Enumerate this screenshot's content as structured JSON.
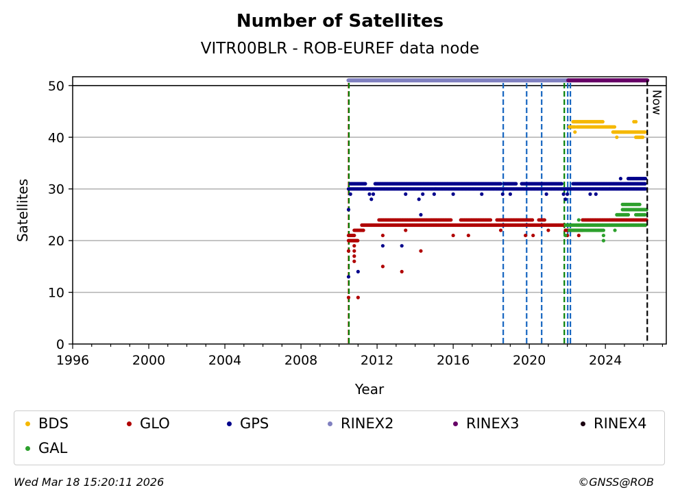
{
  "chart_data": {
    "type": "scatter",
    "title": "Number of Satellites",
    "subtitle": "VITR00BLR - ROB-EUREF data node",
    "xlabel": "Year",
    "ylabel": "Satellites",
    "xlim": [
      1996,
      2027.2
    ],
    "ylim": [
      0,
      51.7
    ],
    "xticks": [
      "1996",
      "2000",
      "2004",
      "2008",
      "2012",
      "2016",
      "2020",
      "2024"
    ],
    "yticks": [
      "0",
      "10",
      "20",
      "30",
      "40",
      "50"
    ],
    "grid": "horizontal",
    "now_label": "Now",
    "now_year": 2026.2,
    "event_lines": [
      {
        "year": 2010.5,
        "color": "#d62728"
      },
      {
        "year": 2010.52,
        "color": "#008000"
      },
      {
        "year": 2018.63,
        "color": "#1565c0"
      },
      {
        "year": 2019.86,
        "color": "#1565c0"
      },
      {
        "year": 2020.65,
        "color": "#1565c0"
      },
      {
        "year": 2021.84,
        "color": "#008000"
      },
      {
        "year": 2022.02,
        "color": "#1565c0"
      },
      {
        "year": 2022.16,
        "color": "#1565c0"
      }
    ],
    "rinex_bars": [
      {
        "name": "RINEX2",
        "from": 2010.5,
        "to": 2022.05,
        "value": 51,
        "color": "#8080c0"
      },
      {
        "name": "RINEX3",
        "from": 2022.05,
        "to": 2026.2,
        "value": 51,
        "color": "#660066"
      }
    ],
    "series": [
      {
        "name": "BDS",
        "color": "#f5b800",
        "runs": [
          [
            2022.1,
            2022.4,
            42
          ],
          [
            2022.3,
            2023.9,
            43
          ],
          [
            2022.5,
            2024.5,
            42
          ],
          [
            2024.4,
            2026.1,
            41
          ],
          [
            2025.6,
            2026.0,
            40
          ]
        ],
        "points": [
          [
            2022.4,
            41
          ],
          [
            2024.6,
            40
          ],
          [
            2025.5,
            43
          ],
          [
            2025.6,
            43
          ]
        ]
      },
      {
        "name": "GLO",
        "color": "#b00000",
        "runs": [
          [
            2012.1,
            2015.9,
            24
          ],
          [
            2016.4,
            2018.0,
            24
          ],
          [
            2018.3,
            2020.2,
            24
          ],
          [
            2020.5,
            2020.8,
            24
          ],
          [
            2022.8,
            2026.2,
            24
          ],
          [
            2011.2,
            2022.0,
            23
          ],
          [
            2022.5,
            2026.1,
            23
          ],
          [
            2010.8,
            2011.3,
            22
          ],
          [
            2021.9,
            2022.8,
            22
          ],
          [
            2010.5,
            2010.8,
            21
          ],
          [
            2010.5,
            2011.0,
            20
          ]
        ],
        "points": [
          [
            2010.5,
            18
          ],
          [
            2010.5,
            9
          ],
          [
            2010.8,
            19
          ],
          [
            2010.8,
            18
          ],
          [
            2010.8,
            17
          ],
          [
            2010.8,
            16
          ],
          [
            2011.0,
            9
          ],
          [
            2012.3,
            15
          ],
          [
            2013.3,
            14
          ],
          [
            2014.3,
            18
          ],
          [
            2012.3,
            21
          ],
          [
            2013.5,
            22
          ],
          [
            2016.0,
            21
          ],
          [
            2016.8,
            21
          ],
          [
            2018.5,
            22
          ],
          [
            2019.8,
            21
          ],
          [
            2020.2,
            21
          ],
          [
            2021.0,
            22
          ],
          [
            2022.0,
            21
          ],
          [
            2022.6,
            21
          ]
        ]
      },
      {
        "name": "GPS",
        "color": "#00008b",
        "runs": [
          [
            2010.6,
            2011.4,
            31
          ],
          [
            2011.9,
            2018.5,
            31
          ],
          [
            2018.7,
            2019.3,
            31
          ],
          [
            2019.6,
            2021.7,
            31
          ],
          [
            2022.3,
            2026.1,
            31
          ],
          [
            2010.5,
            2026.1,
            30
          ],
          [
            2025.2,
            2026.1,
            32
          ]
        ],
        "points": [
          [
            2010.5,
            26
          ],
          [
            2010.5,
            13
          ],
          [
            2011.0,
            14
          ],
          [
            2012.3,
            19
          ],
          [
            2013.3,
            19
          ],
          [
            2014.3,
            25
          ],
          [
            2010.6,
            29
          ],
          [
            2011.6,
            29
          ],
          [
            2011.8,
            29
          ],
          [
            2011.7,
            28
          ],
          [
            2013.5,
            29
          ],
          [
            2014.4,
            29
          ],
          [
            2014.2,
            28
          ],
          [
            2015.0,
            29
          ],
          [
            2016.0,
            29
          ],
          [
            2017.5,
            29
          ],
          [
            2018.6,
            29
          ],
          [
            2019.0,
            29
          ],
          [
            2020.9,
            29
          ],
          [
            2021.8,
            29
          ],
          [
            2022.0,
            29
          ],
          [
            2021.9,
            28
          ],
          [
            2023.2,
            29
          ],
          [
            2023.5,
            29
          ],
          [
            2024.8,
            32
          ]
        ]
      },
      {
        "name": "GAL",
        "color": "#2ca02c",
        "runs": [
          [
            2021.9,
            2026.1,
            23
          ],
          [
            2022.1,
            2023.9,
            22
          ],
          [
            2024.9,
            2025.8,
            27
          ],
          [
            2024.9,
            2026.2,
            26
          ],
          [
            2024.6,
            2025.2,
            25
          ],
          [
            2025.6,
            2026.1,
            25
          ]
        ],
        "points": [
          [
            2022.6,
            24
          ],
          [
            2023.9,
            21
          ],
          [
            2023.9,
            20
          ],
          [
            2021.9,
            21
          ],
          [
            2024.5,
            22
          ]
        ]
      }
    ]
  },
  "legend": [
    {
      "label": "BDS",
      "color": "#f5b800"
    },
    {
      "label": "GLO",
      "color": "#b00000"
    },
    {
      "label": "GPS",
      "color": "#00008b"
    },
    {
      "label": "RINEX2",
      "color": "#8080c0"
    },
    {
      "label": "RINEX3",
      "color": "#660066"
    },
    {
      "label": "RINEX4",
      "color": "#1a0010"
    },
    {
      "label": "GAL",
      "color": "#2ca02c"
    }
  ],
  "footer": {
    "timestamp": "Wed Mar 18 15:20:11 2026",
    "credit": "©GNSS@ROB"
  }
}
